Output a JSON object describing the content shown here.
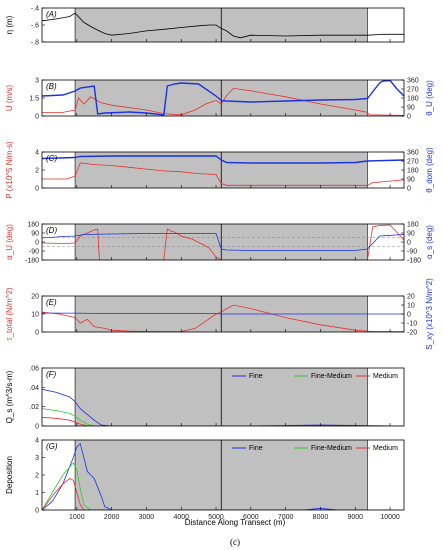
{
  "figure": {
    "caption": "(c)",
    "xlabel": "Distance Along Transect (m)",
    "x_ticks": [
      1000,
      2000,
      3000,
      4000,
      5000,
      6000,
      7000,
      8000,
      9000,
      10000
    ],
    "xlim": [
      0,
      10400
    ],
    "shaded_region": [
      950,
      9350
    ],
    "vertical_line": 5150
  },
  "colors": {
    "black": "#000000",
    "red": "#e8312a",
    "blue": "#1a33e0",
    "green": "#2ecc2e",
    "shade": "#c0c0c0",
    "dashed": "#888888"
  },
  "chart_data": [
    {
      "panel": "(A)",
      "type": "line",
      "ylabel": "η (m)",
      "ylim": [
        -0.8,
        -0.4
      ],
      "y_ticks": [
        -0.4,
        -0.6,
        -0.8
      ],
      "series": [
        {
          "color": "black",
          "x": [
            0,
            400,
            800,
            950,
            1200,
            1500,
            1800,
            2000,
            2500,
            3000,
            3500,
            4000,
            4500,
            4800,
            5000,
            5150,
            5300,
            5500,
            5700,
            6000,
            7000,
            8000,
            9000,
            9350,
            9800,
            10400
          ],
          "y": [
            -0.55,
            -0.53,
            -0.5,
            -0.46,
            -0.57,
            -0.64,
            -0.7,
            -0.72,
            -0.7,
            -0.67,
            -0.65,
            -0.63,
            -0.61,
            -0.6,
            -0.6,
            -0.64,
            -0.67,
            -0.73,
            -0.75,
            -0.72,
            -0.73,
            -0.72,
            -0.72,
            -0.72,
            -0.71,
            -0.71
          ]
        }
      ]
    },
    {
      "panel": "(B)",
      "type": "line",
      "ylabel": "U (m/s)",
      "ylim": [
        0,
        3
      ],
      "y_ticks": [
        0,
        1.5,
        3
      ],
      "ylabel_right": "θ_U (deg)",
      "ylim_right": [
        0,
        360
      ],
      "y_ticks_right": [
        0,
        90,
        180,
        270,
        360
      ],
      "series": [
        {
          "color": "red",
          "axis": "left",
          "x": [
            0,
            600,
            950,
            1050,
            1200,
            1400,
            1700,
            2000,
            2500,
            3000,
            3500,
            4000,
            4400,
            4700,
            5000,
            5150,
            5300,
            5500,
            6000,
            7000,
            8000,
            9000,
            9350,
            9400,
            10400
          ],
          "y": [
            0.3,
            0.3,
            0.5,
            1.5,
            1.0,
            1.6,
            1.1,
            0.9,
            0.7,
            0.5,
            0.2,
            0.1,
            0.5,
            1.0,
            1.3,
            1.0,
            1.7,
            2.3,
            2.1,
            1.6,
            1.0,
            0.5,
            0.3,
            0.1,
            0.05
          ]
        },
        {
          "color": "blue",
          "axis": "right",
          "x": [
            0,
            600,
            950,
            1100,
            1500,
            1600,
            1800,
            2500,
            3000,
            3500,
            3600,
            3800,
            4000,
            4500,
            5000,
            5150,
            5300,
            6000,
            7000,
            8000,
            9000,
            9350,
            9700,
            9800,
            10000,
            10200,
            10400
          ],
          "y": [
            200,
            210,
            250,
            280,
            300,
            20,
            30,
            40,
            30,
            10,
            300,
            320,
            330,
            320,
            200,
            155,
            150,
            140,
            150,
            160,
            165,
            175,
            330,
            350,
            355,
            270,
            200
          ]
        }
      ]
    },
    {
      "panel": "(C)",
      "type": "line",
      "ylabel": "P (x10^5 N/m-s)",
      "ylim": [
        0,
        4
      ],
      "y_ticks": [
        0,
        2,
        4
      ],
      "ylabel_right": "θ_dom (deg)",
      "ylim_right": [
        0,
        360
      ],
      "y_ticks_right": [
        0,
        90,
        180,
        270,
        360
      ],
      "series": [
        {
          "color": "red",
          "axis": "left",
          "x": [
            0,
            700,
            950,
            1100,
            1500,
            2000,
            2500,
            3000,
            3500,
            4000,
            4500,
            5000,
            5150,
            5300,
            5600,
            6000,
            7000,
            8000,
            9000,
            9350,
            9500,
            10400
          ],
          "y": [
            1.0,
            1.0,
            1.3,
            2.8,
            2.6,
            2.5,
            2.3,
            2.1,
            1.9,
            1.8,
            1.6,
            1.5,
            0.5,
            0.3,
            0.3,
            0.3,
            0.3,
            0.3,
            0.3,
            0.3,
            0.6,
            0.9
          ]
        },
        {
          "color": "blue",
          "axis": "right",
          "x": [
            0,
            950,
            1100,
            2000,
            3000,
            4000,
            5000,
            5150,
            5300,
            6000,
            7000,
            8000,
            9000,
            9350,
            10400
          ],
          "y": [
            295,
            305,
            315,
            320,
            320,
            320,
            320,
            280,
            255,
            250,
            250,
            250,
            255,
            270,
            280
          ]
        }
      ]
    },
    {
      "panel": "(D)",
      "type": "line",
      "ylabel": "α_U (deg)",
      "ylim": [
        -180,
        180
      ],
      "y_ticks": [
        -180,
        -90,
        0,
        90,
        180
      ],
      "ylabel_right": "α_s (deg)",
      "ylim_right": [
        -180,
        180
      ],
      "y_ticks_right": [
        -180,
        -90,
        0,
        90,
        180
      ],
      "reference_lines": [
        45,
        -45
      ],
      "series": [
        {
          "color": "red",
          "axis": "left",
          "x": [
            0,
            600,
            950,
            1100,
            1300,
            1500,
            1600,
            1650,
            1700,
            1800,
            2000,
            3000,
            3500,
            3600,
            3650,
            3700,
            3800,
            4000,
            4300,
            4600,
            4800,
            5000,
            5150,
            5300,
            6000,
            7000,
            8000,
            9000,
            9350,
            9500,
            9700,
            10000,
            10400
          ],
          "y": [
            -10,
            -15,
            -10,
            60,
            90,
            120,
            130,
            -180,
            -180,
            -180,
            -180,
            -180,
            -180,
            130,
            120,
            110,
            100,
            60,
            30,
            -20,
            -60,
            -150,
            -180,
            -180,
            -180,
            -180,
            -180,
            -180,
            -180,
            150,
            165,
            170,
            20
          ]
        },
        {
          "color": "blue",
          "axis": "right",
          "x": [
            0,
            600,
            950,
            1200,
            2000,
            3000,
            4000,
            5000,
            5150,
            5300,
            6000,
            7000,
            8000,
            9000,
            9350,
            9700,
            10400
          ],
          "y": [
            40,
            55,
            60,
            75,
            80,
            85,
            85,
            85,
            -70,
            -80,
            -85,
            -85,
            -85,
            -85,
            -70,
            60,
            75
          ]
        }
      ]
    },
    {
      "panel": "(E)",
      "type": "line",
      "ylabel": "τ_total (N/m^2)",
      "ylim": [
        0,
        20
      ],
      "y_ticks": [
        0,
        10,
        20
      ],
      "ylabel_right": "S_xy (x10^3 N/m^2)",
      "ylim_right": [
        -20,
        20
      ],
      "y_ticks_right": [
        -20,
        -10,
        0,
        10,
        20
      ],
      "series": [
        {
          "color": "red",
          "axis": "left",
          "x": [
            0,
            500,
            950,
            1100,
            1300,
            1500,
            1800,
            2000,
            2500,
            3000,
            3500,
            4000,
            4400,
            4700,
            5000,
            5150,
            5300,
            5500,
            6000,
            7000,
            8000,
            9000,
            9350,
            9500,
            10400
          ],
          "y": [
            11,
            10,
            8,
            5,
            7,
            3,
            2,
            1,
            0.5,
            0.3,
            0.2,
            0.3,
            2,
            6,
            10,
            11,
            13,
            15,
            13,
            8,
            4,
            1,
            0.5,
            0.3,
            0.2
          ]
        },
        {
          "color": "blue",
          "axis": "right",
          "x": [
            0,
            950,
            2000,
            3000,
            4000,
            5000,
            5150,
            6000,
            7000,
            8000,
            9000,
            10400
          ],
          "y": [
            1,
            1,
            0.5,
            0.5,
            0.5,
            0.5,
            0,
            0,
            0,
            0,
            0,
            0
          ]
        }
      ]
    },
    {
      "panel": "(F)",
      "type": "line",
      "ylabel": "Q_s (m^3/s-m)",
      "ylim": [
        0,
        0.06
      ],
      "y_ticks": [
        0,
        0.02,
        0.04,
        0.06
      ],
      "legend": [
        "Fine",
        "Fine-Medium",
        "Medium"
      ],
      "series": [
        {
          "name": "Fine",
          "color": "blue",
          "x": [
            0,
            400,
            800,
            950,
            1100,
            1300,
            1500,
            1700,
            2000,
            6000,
            8000,
            10400
          ],
          "y": [
            0.038,
            0.035,
            0.03,
            0.025,
            0.018,
            0.012,
            0.006,
            0.001,
            0,
            0,
            0.001,
            0
          ]
        },
        {
          "name": "Fine-Medium",
          "color": "green",
          "x": [
            0,
            400,
            800,
            950,
            1100,
            1300,
            1500,
            2000,
            10400
          ],
          "y": [
            0.018,
            0.016,
            0.013,
            0.01,
            0.006,
            0.002,
            0,
            0,
            0
          ]
        },
        {
          "name": "Medium",
          "color": "red",
          "x": [
            0,
            400,
            800,
            950,
            1100,
            1300,
            2000,
            10400
          ],
          "y": [
            0.009,
            0.008,
            0.006,
            0.004,
            0.002,
            0,
            0,
            0
          ]
        }
      ]
    },
    {
      "panel": "(G)",
      "type": "line",
      "ylabel": "Deposition",
      "ylim": [
        0,
        4
      ],
      "y_ticks": [
        0,
        1,
        2,
        3,
        4
      ],
      "legend": [
        "Fine",
        "Fine-Medium",
        "Medium"
      ],
      "series": [
        {
          "name": "Fine",
          "color": "blue",
          "x": [
            0,
            300,
            600,
            900,
            1000,
            1100,
            1200,
            1300,
            1400,
            1500,
            1600,
            1700,
            1800,
            2000,
            7500,
            8000,
            8500,
            10400
          ],
          "y": [
            0,
            0.5,
            1.5,
            3.0,
            3.6,
            3.8,
            3.0,
            2.2,
            2.0,
            1.8,
            1.3,
            0.8,
            0.2,
            0,
            0,
            0.1,
            0,
            0
          ]
        },
        {
          "name": "Fine-Medium",
          "color": "green",
          "x": [
            0,
            300,
            600,
            900,
            1000,
            1100,
            1200,
            1400,
            10400
          ],
          "y": [
            0,
            1.0,
            2.0,
            2.7,
            2.3,
            1.2,
            0.3,
            0,
            0
          ]
        },
        {
          "name": "Medium",
          "color": "red",
          "x": [
            0,
            300,
            600,
            800,
            900,
            1000,
            1100,
            1200,
            10400
          ],
          "y": [
            0,
            0.8,
            1.5,
            1.8,
            1.7,
            1.0,
            0.3,
            0,
            0
          ]
        }
      ]
    }
  ]
}
